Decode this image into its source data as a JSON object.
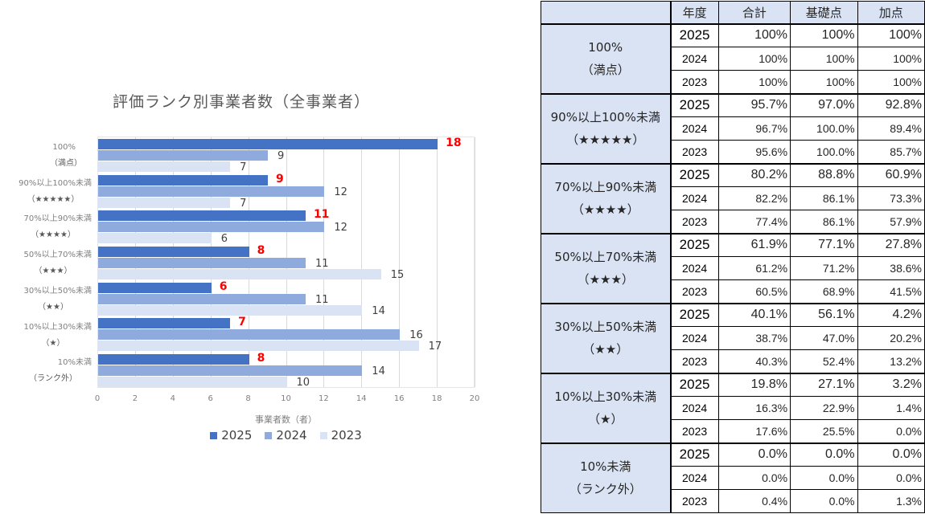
{
  "chart_data": {
    "type": "bar",
    "orientation": "horizontal",
    "title": "評価ランク別事業者数（全事業者）",
    "xlabel": "事業者数（者）",
    "ylabel": "",
    "xlim": [
      0,
      20
    ],
    "xticks": [
      0,
      2,
      4,
      6,
      8,
      10,
      12,
      14,
      16,
      18,
      20
    ],
    "grid": true,
    "legend_position": "bottom",
    "categories": [
      {
        "line1": "100%",
        "line2": "（満点）"
      },
      {
        "line1": "90%以上100%未満",
        "line2": "（★★★★★）"
      },
      {
        "line1": "70%以上90%未満",
        "line2": "（★★★★）"
      },
      {
        "line1": "50%以上70%未満",
        "line2": "（★★★）"
      },
      {
        "line1": "30%以上50%未満",
        "line2": "（★★）"
      },
      {
        "line1": "10%以上30%未満",
        "line2": "（★）"
      },
      {
        "line1": "10%未満",
        "line2": "（ランク外）"
      }
    ],
    "series": [
      {
        "name": "2025",
        "color": "#4472c4",
        "label_color": "#ff0000",
        "values": [
          18,
          9,
          11,
          8,
          6,
          7,
          8
        ]
      },
      {
        "name": "2024",
        "color": "#8faadc",
        "label_color": "#404040",
        "values": [
          9,
          12,
          12,
          11,
          11,
          16,
          14
        ]
      },
      {
        "name": "2023",
        "color": "#dae3f3",
        "label_color": "#404040",
        "values": [
          7,
          7,
          6,
          15,
          14,
          17,
          10
        ]
      }
    ]
  },
  "table": {
    "headers": [
      "",
      "年度",
      "合計",
      "基礎点",
      "加点"
    ],
    "groups": [
      {
        "label1": "100%",
        "label2": "（満点）",
        "rows": [
          {
            "year": "2025",
            "total": "100%",
            "base": "100%",
            "add": "100%"
          },
          {
            "year": "2024",
            "total": "100%",
            "base": "100%",
            "add": "100%"
          },
          {
            "year": "2023",
            "total": "100%",
            "base": "100%",
            "add": "100%"
          }
        ]
      },
      {
        "label1": "90%以上100%未満",
        "label2": "（★★★★★）",
        "rows": [
          {
            "year": "2025",
            "total": "95.7%",
            "base": "97.0%",
            "add": "92.8%"
          },
          {
            "year": "2024",
            "total": "96.7%",
            "base": "100.0%",
            "add": "89.4%"
          },
          {
            "year": "2023",
            "total": "95.6%",
            "base": "100.0%",
            "add": "85.7%"
          }
        ]
      },
      {
        "label1": "70%以上90%未満",
        "label2": "（★★★★）",
        "rows": [
          {
            "year": "2025",
            "total": "80.2%",
            "base": "88.8%",
            "add": "60.9%"
          },
          {
            "year": "2024",
            "total": "82.2%",
            "base": "86.1%",
            "add": "73.3%"
          },
          {
            "year": "2023",
            "total": "77.4%",
            "base": "86.1%",
            "add": "57.9%"
          }
        ]
      },
      {
        "label1": "50%以上70%未満",
        "label2": "（★★★）",
        "rows": [
          {
            "year": "2025",
            "total": "61.9%",
            "base": "77.1%",
            "add": "27.8%"
          },
          {
            "year": "2024",
            "total": "61.2%",
            "base": "71.2%",
            "add": "38.6%"
          },
          {
            "year": "2023",
            "total": "60.5%",
            "base": "68.9%",
            "add": "41.5%"
          }
        ]
      },
      {
        "label1": "30%以上50%未満",
        "label2": "（★★）",
        "rows": [
          {
            "year": "2025",
            "total": "40.1%",
            "base": "56.1%",
            "add": "4.2%"
          },
          {
            "year": "2024",
            "total": "38.7%",
            "base": "47.0%",
            "add": "20.2%"
          },
          {
            "year": "2023",
            "total": "40.3%",
            "base": "52.4%",
            "add": "13.2%"
          }
        ]
      },
      {
        "label1": "10%以上30%未満",
        "label2": "（★）",
        "rows": [
          {
            "year": "2025",
            "total": "19.8%",
            "base": "27.1%",
            "add": "3.2%"
          },
          {
            "year": "2024",
            "total": "16.3%",
            "base": "22.9%",
            "add": "1.4%"
          },
          {
            "year": "2023",
            "total": "17.6%",
            "base": "25.5%",
            "add": "0.0%"
          }
        ]
      },
      {
        "label1": "10%未満",
        "label2": "（ランク外）",
        "rows": [
          {
            "year": "2025",
            "total": "0.0%",
            "base": "0.0%",
            "add": "0.0%"
          },
          {
            "year": "2024",
            "total": "0.0%",
            "base": "0.0%",
            "add": "0.0%"
          },
          {
            "year": "2023",
            "total": "0.4%",
            "base": "0.0%",
            "add": "1.3%"
          }
        ]
      }
    ]
  }
}
